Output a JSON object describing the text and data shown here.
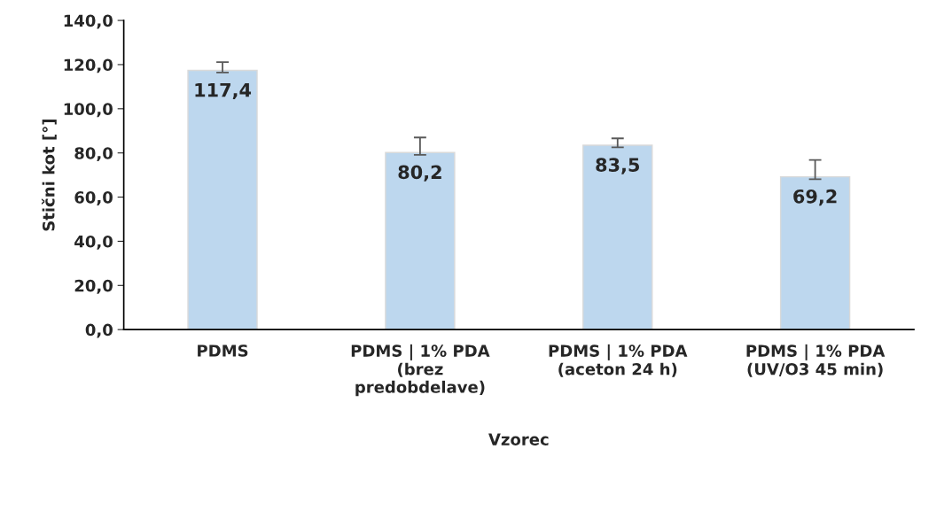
{
  "chart_data": {
    "type": "bar",
    "xlabel": "Vzorec",
    "ylabel": "Stični kot [°]",
    "categories": [
      "PDMS",
      "PDMS | 1% PDA\n(brez\npredobdelave)",
      "PDMS | 1% PDA\n(aceton 24 h)",
      "PDMS | 1% PDA\n(UV/O3 45 min)"
    ],
    "values": [
      117.4,
      80.2,
      83.5,
      69.2
    ],
    "errors": [
      [
        116.4,
        121.1
      ],
      [
        79.1,
        87.0
      ],
      [
        82.5,
        86.6
      ],
      [
        68.1,
        76.8
      ]
    ],
    "color": "#bdd7ee",
    "value_labels": [
      "117,4",
      "80,2",
      "83,5",
      "69,2"
    ],
    "ylim": [
      0,
      140
    ],
    "yticks": [
      {
        "value": 0,
        "label": "0,0"
      },
      {
        "value": 20,
        "label": "20,0"
      },
      {
        "value": 40,
        "label": "40,0"
      },
      {
        "value": 60,
        "label": "60,0"
      },
      {
        "value": 80,
        "label": "80,0"
      },
      {
        "value": 100,
        "label": "100,0"
      },
      {
        "value": 120,
        "label": "120,0"
      },
      {
        "value": 140,
        "label": "140,0"
      }
    ],
    "grid": false,
    "legend": false
  }
}
